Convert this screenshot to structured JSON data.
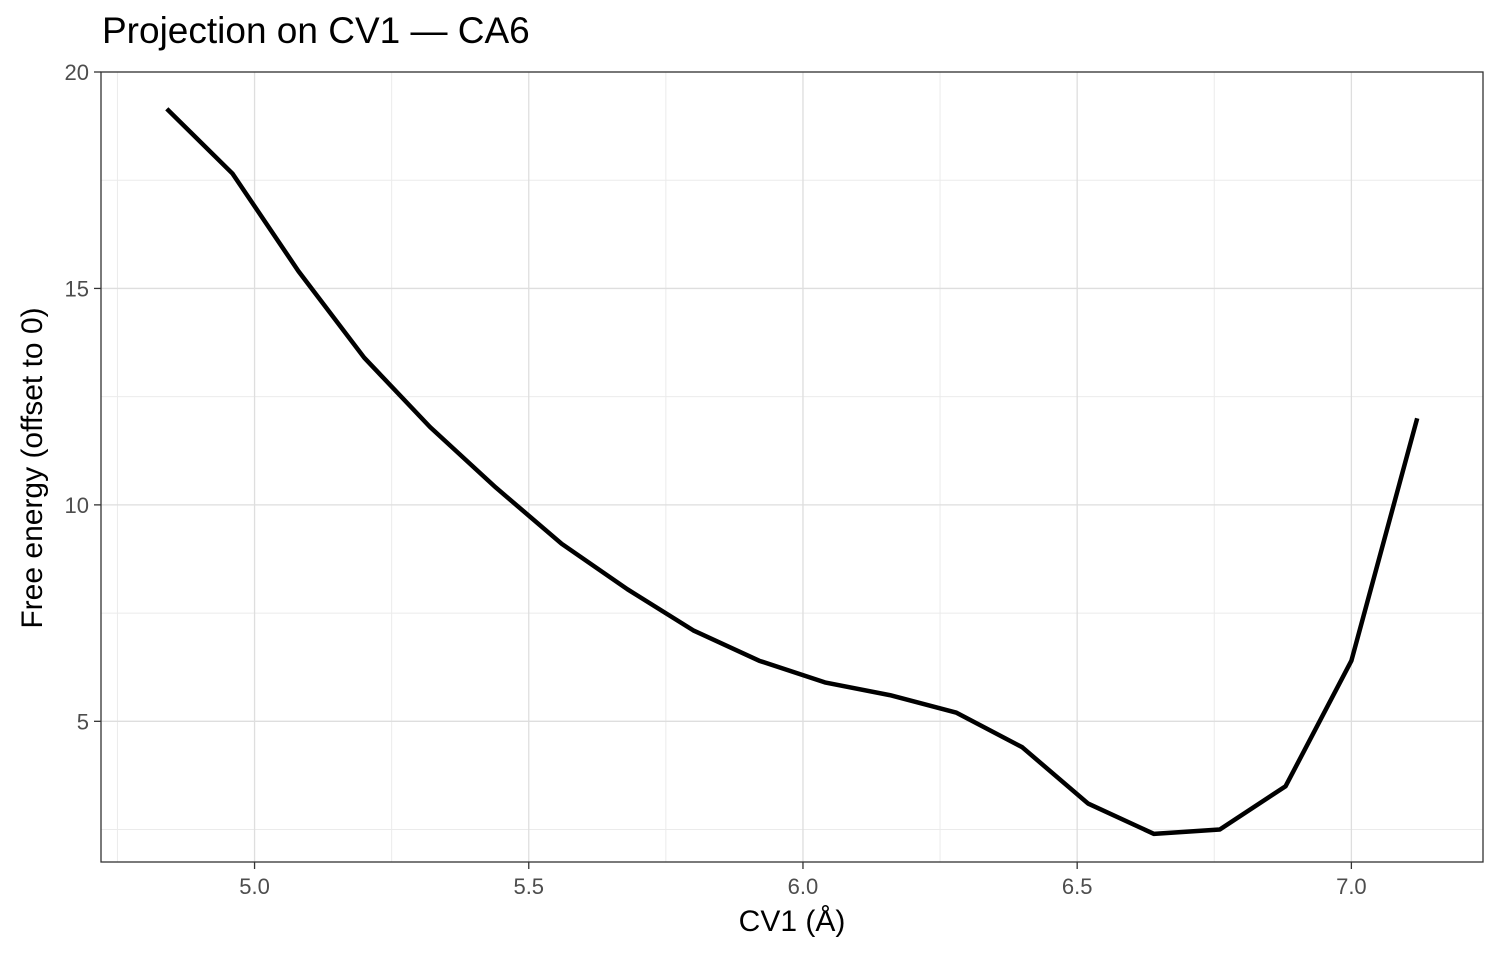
{
  "chart_data": {
    "type": "line",
    "title": "Projection on CV1 — CA6",
    "xlabel": "CV1 (Å)",
    "ylabel": "Free energy (offset to 0)",
    "xlim": [
      4.72,
      7.24
    ],
    "ylim": [
      1.75,
      20
    ],
    "x_ticks": [
      5.0,
      5.5,
      6.0,
      6.5,
      7.0
    ],
    "x_tick_labels": [
      "5.0",
      "5.5",
      "6.0",
      "6.5",
      "7.0"
    ],
    "y_ticks": [
      5,
      10,
      15,
      20
    ],
    "y_tick_labels": [
      "5",
      "10",
      "15",
      "20"
    ],
    "grid": true,
    "legend": "none",
    "line_color": "#000000",
    "series": [
      {
        "x": [
          4.84,
          4.96,
          5.08,
          5.2,
          5.32,
          5.44,
          5.56,
          5.68,
          5.8,
          5.92,
          6.04,
          6.16,
          6.28,
          6.4,
          6.52,
          6.64,
          6.76,
          6.88,
          7.0,
          7.12
        ],
        "values": [
          19.15,
          17.65,
          15.4,
          13.4,
          11.8,
          10.4,
          9.1,
          8.05,
          7.1,
          6.4,
          5.9,
          5.6,
          5.2,
          4.4,
          3.1,
          2.4,
          2.5,
          3.5,
          6.4,
          12.0
        ]
      }
    ]
  }
}
